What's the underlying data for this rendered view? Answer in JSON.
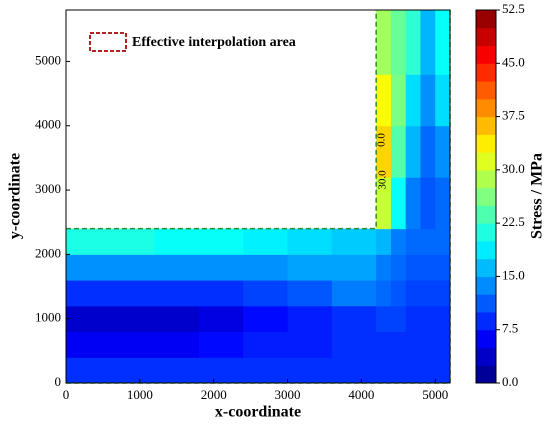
{
  "chart_data": {
    "type": "contour",
    "xlabel": "x-coordinate",
    "ylabel": "y-coordinate",
    "colorbar_label": "Stress / MPa",
    "legend": "Effective interpolation area",
    "annotations": [
      "0.0",
      "30.0"
    ],
    "xlim": [
      0,
      5200
    ],
    "ylim": [
      0,
      5800
    ],
    "xticks": [
      0,
      1000,
      2000,
      3000,
      4000,
      5000
    ],
    "yticks": [
      0,
      1000,
      2000,
      3000,
      4000,
      5000
    ],
    "clim": [
      0,
      52.5
    ],
    "cticks": [
      {
        "value": 0,
        "label": "0.0"
      },
      7.5,
      {
        "value": 15,
        "label": "15.0"
      },
      22.5,
      {
        "value": 30,
        "label": "30.0"
      },
      37.5,
      {
        "value": 45,
        "label": "45.0"
      },
      52.5
    ],
    "colormap": "jet",
    "xedges": [
      0,
      600,
      1200,
      1800,
      2400,
      3000,
      3600,
      4200,
      4400,
      4600,
      4800,
      5000,
      5200
    ],
    "yedges": [
      0,
      400,
      800,
      1200,
      1600,
      2000,
      2400,
      3200,
      4000,
      4800,
      5800
    ],
    "z": [
      [
        9,
        9,
        9,
        9,
        9,
        9,
        9,
        9,
        9,
        9,
        9,
        9
      ],
      [
        6,
        6,
        6,
        7,
        8,
        8,
        9,
        9,
        9,
        9,
        9,
        9
      ],
      [
        4,
        4,
        4,
        5,
        7,
        8,
        9,
        10,
        10,
        9,
        9,
        9
      ],
      [
        9,
        9,
        9,
        9,
        10,
        11,
        13,
        12,
        11,
        10,
        10,
        10
      ],
      [
        14,
        14,
        14,
        14,
        14,
        15,
        15,
        13,
        12,
        11,
        11,
        11
      ],
      [
        21,
        21,
        20,
        20,
        19,
        18,
        17,
        16,
        13,
        12,
        12,
        12
      ],
      [
        null,
        null,
        null,
        null,
        null,
        null,
        null,
        30,
        20,
        13,
        11,
        12
      ],
      [
        null,
        null,
        null,
        null,
        null,
        null,
        null,
        35,
        24,
        16,
        12,
        14
      ],
      [
        null,
        null,
        null,
        null,
        null,
        null,
        null,
        33,
        26,
        18,
        14,
        18
      ],
      [
        null,
        null,
        null,
        null,
        null,
        null,
        null,
        28,
        25,
        22,
        16,
        20
      ]
    ]
  }
}
